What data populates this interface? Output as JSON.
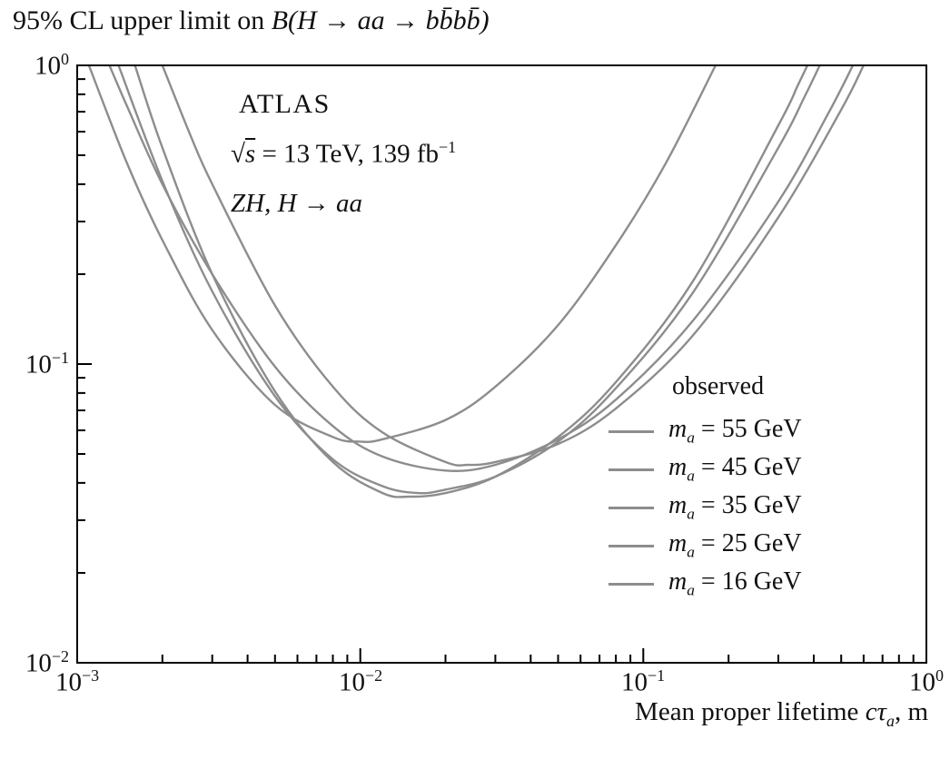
{
  "title": {
    "prefix": "95% CL upper limit on ",
    "math": "B(H → aa → bb̄bb̄)"
  },
  "annotations": {
    "experiment": "ATLAS",
    "sqrt_sign": "√",
    "s_var": "s",
    "dataset_rest": " = 13 TeV, 139 fb",
    "dataset_exp": "−1",
    "process": "ZH, H → aa"
  },
  "legend": {
    "title": "observed",
    "var_base": "m",
    "var_sub": "a"
  },
  "xaxis": {
    "prefix": "Mean proper lifetime ",
    "math": "cτ",
    "sub": "a",
    "suffix": ", m"
  },
  "chart_data": {
    "type": "line",
    "title": "95% CL upper limit on B(H → aa → bb̄bb̄)",
    "xlabel": "Mean proper lifetime cτ_a, m",
    "ylabel": "95% CL upper limit on B(H → aa → bb̄bb̄)",
    "xscale": "log",
    "yscale": "log",
    "xlim": [
      0.001,
      1.0
    ],
    "ylim": [
      0.01,
      1.0
    ],
    "grid": false,
    "legend_title": "observed",
    "legend_position": "center-right",
    "line_color": "#8d8d8d",
    "x_ticks": [
      0.001,
      0.01,
      0.1,
      1.0
    ],
    "y_ticks": [
      1.0,
      0.1,
      0.01
    ],
    "x_tick_display": [
      {
        "base": "10",
        "exp": "−3"
      },
      {
        "base": "10",
        "exp": "−2"
      },
      {
        "base": "10",
        "exp": "−1"
      },
      {
        "base": "10",
        "exp": "0"
      }
    ],
    "y_tick_display": [
      {
        "base": "10",
        "exp": "0"
      },
      {
        "base": "10",
        "exp": "−1"
      },
      {
        "base": "10",
        "exp": "−2"
      }
    ],
    "series": [
      {
        "label": "m_a = 55 GeV",
        "mass_gev": 55,
        "value_label": " = 55 GeV",
        "color": "#8d8d8d",
        "points": [
          [
            0.0011,
            1.0
          ],
          [
            0.0015,
            0.47
          ],
          [
            0.002,
            0.26
          ],
          [
            0.003,
            0.13
          ],
          [
            0.005,
            0.073
          ],
          [
            0.008,
            0.057
          ],
          [
            0.01,
            0.055
          ],
          [
            0.012,
            0.056
          ],
          [
            0.02,
            0.065
          ],
          [
            0.03,
            0.084
          ],
          [
            0.05,
            0.135
          ],
          [
            0.08,
            0.25
          ],
          [
            0.12,
            0.47
          ],
          [
            0.18,
            1.0
          ]
        ]
      },
      {
        "label": "m_a = 45 GeV",
        "mass_gev": 45,
        "value_label": " = 45 GeV",
        "color": "#8d8d8d",
        "points": [
          [
            0.0013,
            1.0
          ],
          [
            0.0015,
            0.73
          ],
          [
            0.002,
            0.4
          ],
          [
            0.003,
            0.2
          ],
          [
            0.005,
            0.098
          ],
          [
            0.008,
            0.062
          ],
          [
            0.012,
            0.049
          ],
          [
            0.02,
            0.044
          ],
          [
            0.03,
            0.046
          ],
          [
            0.05,
            0.056
          ],
          [
            0.08,
            0.076
          ],
          [
            0.15,
            0.14
          ],
          [
            0.3,
            0.35
          ],
          [
            0.45,
            0.69
          ],
          [
            0.55,
            1.0
          ]
        ]
      },
      {
        "label": "m_a = 35 GeV",
        "mass_gev": 35,
        "value_label": " = 35 GeV",
        "color": "#8d8d8d",
        "points": [
          [
            0.0014,
            1.0
          ],
          [
            0.002,
            0.41
          ],
          [
            0.003,
            0.175
          ],
          [
            0.005,
            0.078
          ],
          [
            0.008,
            0.048
          ],
          [
            0.012,
            0.039
          ],
          [
            0.016,
            0.037
          ],
          [
            0.02,
            0.038
          ],
          [
            0.03,
            0.042
          ],
          [
            0.05,
            0.055
          ],
          [
            0.08,
            0.083
          ],
          [
            0.15,
            0.174
          ],
          [
            0.3,
            0.53
          ],
          [
            0.37,
            0.78
          ],
          [
            0.42,
            1.0
          ]
        ]
      },
      {
        "label": "m_a = 25 GeV",
        "mass_gev": 25,
        "value_label": " = 25 GeV",
        "color": "#8d8d8d",
        "points": [
          [
            0.0016,
            1.0
          ],
          [
            0.002,
            0.53
          ],
          [
            0.003,
            0.2
          ],
          [
            0.005,
            0.081
          ],
          [
            0.008,
            0.047
          ],
          [
            0.012,
            0.037
          ],
          [
            0.015,
            0.036
          ],
          [
            0.02,
            0.037
          ],
          [
            0.03,
            0.042
          ],
          [
            0.05,
            0.057
          ],
          [
            0.08,
            0.087
          ],
          [
            0.15,
            0.19
          ],
          [
            0.3,
            0.63
          ],
          [
            0.35,
            0.85
          ],
          [
            0.38,
            1.0
          ]
        ]
      },
      {
        "label": "m_a = 16 GeV",
        "mass_gev": 16,
        "value_label": " = 16 GeV",
        "color": "#8d8d8d",
        "points": [
          [
            0.002,
            1.0
          ],
          [
            0.0025,
            0.59
          ],
          [
            0.003,
            0.4
          ],
          [
            0.005,
            0.157
          ],
          [
            0.008,
            0.084
          ],
          [
            0.012,
            0.059
          ],
          [
            0.02,
            0.047
          ],
          [
            0.024,
            0.046
          ],
          [
            0.03,
            0.047
          ],
          [
            0.05,
            0.054
          ],
          [
            0.08,
            0.071
          ],
          [
            0.15,
            0.125
          ],
          [
            0.3,
            0.31
          ],
          [
            0.5,
            0.71
          ],
          [
            0.6,
            1.0
          ]
        ]
      }
    ]
  }
}
